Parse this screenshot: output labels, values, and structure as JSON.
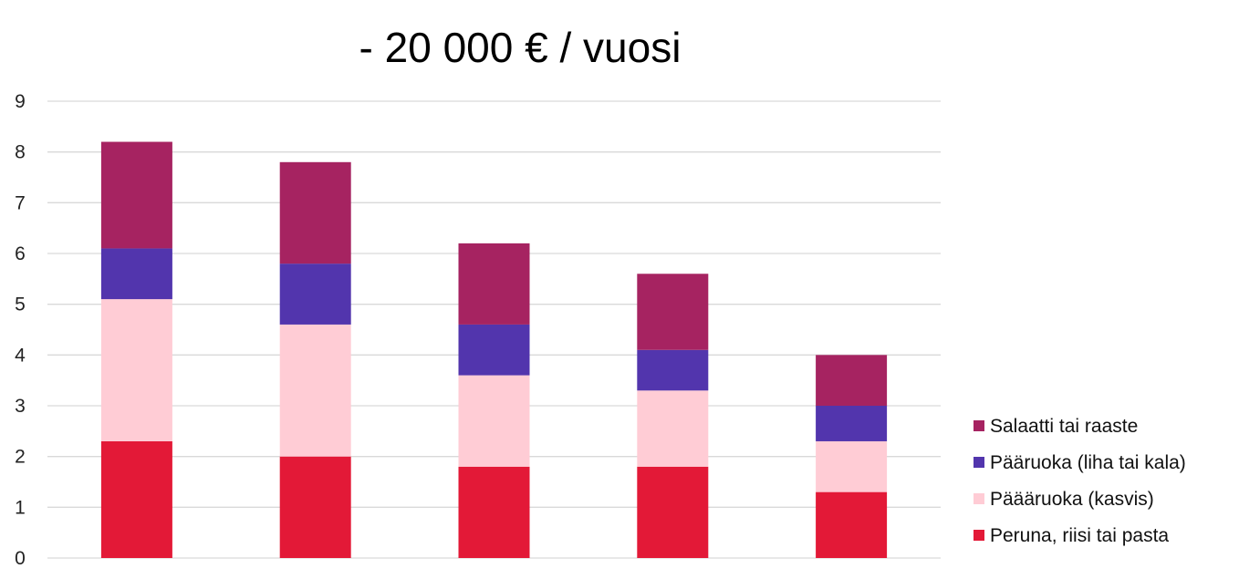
{
  "chart_data": {
    "type": "bar",
    "stacked": true,
    "title": "- 20 000 € / vuosi",
    "xlabel": "",
    "ylabel": "",
    "ylim": [
      0,
      9
    ],
    "yticks": [
      "0",
      "1",
      "2",
      "3",
      "4",
      "5",
      "6",
      "7",
      "8",
      "9"
    ],
    "grid": true,
    "legend_position": "bottom-right",
    "categories": [
      "",
      "",
      "",
      "",
      ""
    ],
    "series": [
      {
        "name": "Peruna, riisi tai pasta",
        "color": "#e31937",
        "values": [
          2.3,
          2.0,
          1.8,
          1.8,
          1.3
        ]
      },
      {
        "name": "Pääruoka (kasvis)",
        "color": "#ffccd5",
        "values": [
          2.8,
          2.6,
          1.8,
          1.5,
          1.0
        ]
      },
      {
        "name": "Pääruoka (liha tai kala)",
        "color": "#5235ad",
        "values": [
          1.0,
          1.2,
          1.0,
          0.8,
          0.7
        ]
      },
      {
        "name": "Salaatti tai raaste",
        "color": "#a62361",
        "values": [
          2.1,
          2.0,
          1.6,
          1.5,
          1.0
        ]
      }
    ],
    "legend_order": [
      "Salaatti tai raaste",
      "Pääruoka (liha tai kala)",
      "Päääruoka (kasvis)",
      "Peruna, riisi tai pasta"
    ]
  }
}
